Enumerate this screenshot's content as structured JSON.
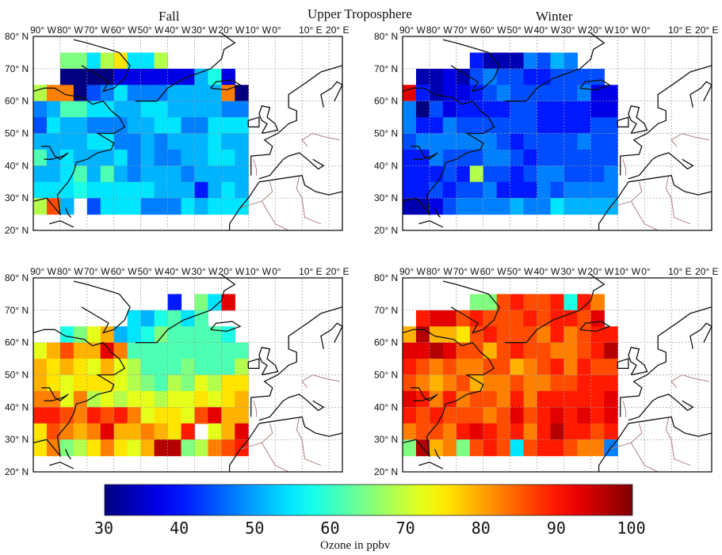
{
  "header": {
    "main_title": "Upper Troposphere",
    "left_title": "Fall",
    "right_title": "Winter"
  },
  "axes": {
    "lon_ticks": [
      "90° W",
      "80° W",
      "70° W",
      "60° W",
      "50° W",
      "40° W",
      "30° W",
      "20° W",
      "10° W",
      "0°",
      "10° E",
      "20° E"
    ],
    "lat_ticks": [
      "20° N",
      "30° N",
      "40° N",
      "50° N",
      "60° N",
      "70° N",
      "80° N"
    ]
  },
  "colorbar": {
    "ticks": [
      "30",
      "40",
      "50",
      "60",
      "70",
      "80",
      "90",
      "100"
    ],
    "label": "Ozone in ppbv",
    "min": 30,
    "max": 100
  },
  "colors": {
    "frame": "#000000",
    "coast": "#111111",
    "border": "#b08080",
    "grid": "#9a9a9a"
  },
  "chart_data": {
    "type": "heatmap",
    "lon_range": [
      -90,
      25
    ],
    "lat_range": [
      20,
      80
    ],
    "cell_size_deg": 5,
    "lon_start": -90,
    "lat_top": 75,
    "panels": [
      {
        "name": "upper-fall",
        "rows": [
          "................",
          "..KKHLNHHL......",
          "..AAAACCCCCCGIC.",
          "LPPAEFHFFFGGGGPA",
          "FGJJHHGGHHGGGGFF",
          "EHGGFFFGGHHFFHHH",
          "GGGGHHFFGFGGGHGG",
          "JGHGGGHFGFFGGHHG",
          "GGHJGJGFGGGFGGGG",
          "HHHIHHHHHGGGDGHG",
          "LQG.EHHHFFFHGHHH",
          "................"
        ]
      },
      {
        "name": "upper-winter",
        "rows": [
          "................",
          ".....DBBBFEGF...",
          ".BBCBEFEEDDEEEE.",
          "SDBCCDEFEEEEEFCC",
          "FAECDDDDEEDDDDCC",
          "FDDFEEEEEEDDDDEE",
          "EFFFFFFEDEEEEFEE",
          "DDFEEEFFEDEEEEEE",
          "DDDEDLEEDEFFEEEF",
          "DDEDEEFDDDFEFFFF",
          "BBCEFFFFGFFHGGGG",
          "................"
        ]
      },
      {
        "name": "middle-fall",
        "rows": [
          "................",
          "..........D.KHS.",
          ".......HGIJHJ...",
          "..IKMOGHIKJJJJI.",
          "MOQOOSPJJJJJJJJJ",
          "ONONMOMLJJJKJJJL",
          "ONMNNNMLKJLKMLNN",
          "PPMPLMLMMLMMNMNO",
          "RRQPRQRPMNNMQSOO",
          "NQPOPSOOPONR.MOS",
          "NPKLNPNMOTTKLPQR",
          "................"
        ]
      },
      {
        "name": "middle-winter",
        "rows": [
          "................",
          ".....KKQRQQRIRP.",
          ".RSSQRQQQRQRRQS.",
          "OTOONQRQQQPRPQRR",
          "SSTSQQOQRQQPPQRT",
          "RQPQPPQQOPQRPRQQ",
          "QPOPQOPPQPPQQRRR",
          "SRPRPQQPRPRRRRRS",
          "RQRQQQPQSQRSRSRS",
          "PQQPRSRQRPRTRRQR",
          "KTOPKQRQHQRRQPPF",
          "................"
        ]
      }
    ]
  }
}
